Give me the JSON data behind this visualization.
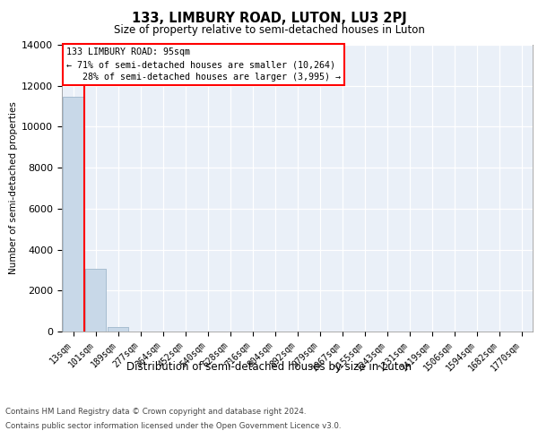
{
  "title": "133, LIMBURY ROAD, LUTON, LU3 2PJ",
  "subtitle": "Size of property relative to semi-detached houses in Luton",
  "xlabel": "Distribution of semi-detached houses by size in Luton",
  "ylabel": "Number of semi-detached properties",
  "bar_categories": [
    "13sqm",
    "101sqm",
    "189sqm",
    "277sqm",
    "364sqm",
    "452sqm",
    "540sqm",
    "628sqm",
    "716sqm",
    "804sqm",
    "892sqm",
    "979sqm",
    "1067sqm",
    "1155sqm",
    "1243sqm",
    "1331sqm",
    "1419sqm",
    "1506sqm",
    "1594sqm",
    "1682sqm",
    "1770sqm"
  ],
  "bar_values": [
    11450,
    3050,
    230,
    0,
    0,
    0,
    0,
    0,
    0,
    0,
    0,
    0,
    0,
    0,
    0,
    0,
    0,
    0,
    0,
    0,
    0
  ],
  "bar_color": "#c8d8e8",
  "bar_edge_color": "#a0b8cc",
  "ylim": [
    0,
    14000
  ],
  "yticks": [
    0,
    2000,
    4000,
    6000,
    8000,
    10000,
    12000,
    14000
  ],
  "property_label": "133 LIMBURY ROAD: 95sqm",
  "pct_smaller": 71,
  "n_smaller": 10264,
  "pct_larger": 28,
  "n_larger": 3995,
  "background_color": "#eaf0f8",
  "grid_color": "#d0dce8",
  "footer_line1": "Contains HM Land Registry data © Crown copyright and database right 2024.",
  "footer_line2": "Contains public sector information licensed under the Open Government Licence v3.0."
}
